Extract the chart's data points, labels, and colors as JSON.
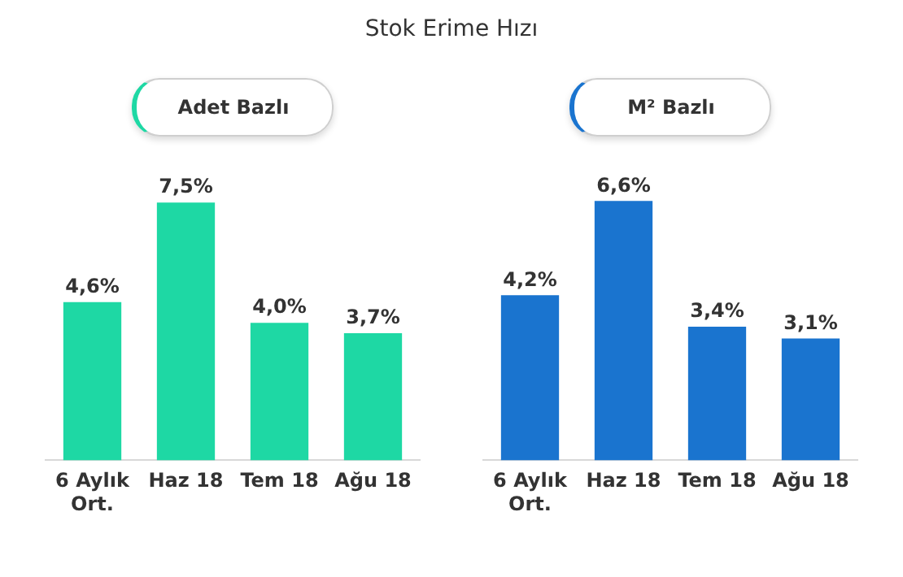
{
  "chart_data": [
    {
      "type": "bar",
      "title": "Stok Erime Hızı",
      "subtitle": "Adet Bazlı",
      "categories": [
        "6 Aylık Ort.",
        "Haz 18",
        "Tem 18",
        "Ağu 18"
      ],
      "values": [
        4.6,
        7.5,
        4.0,
        3.7
      ],
      "value_labels": [
        "4,6%",
        "7,5%",
        "4,0%",
        "3,7%"
      ],
      "color": "#1ed8a4"
    },
    {
      "type": "bar",
      "subtitle": "M² Bazlı",
      "categories": [
        "6 Aylık Ort.",
        "Haz 18",
        "Tem 18",
        "Ağu 18"
      ],
      "values": [
        4.2,
        6.6,
        3.4,
        3.1
      ],
      "value_labels": [
        "4,2%",
        "6,6%",
        "3,4%",
        "3,1%"
      ],
      "color": "#1a74cf"
    }
  ]
}
